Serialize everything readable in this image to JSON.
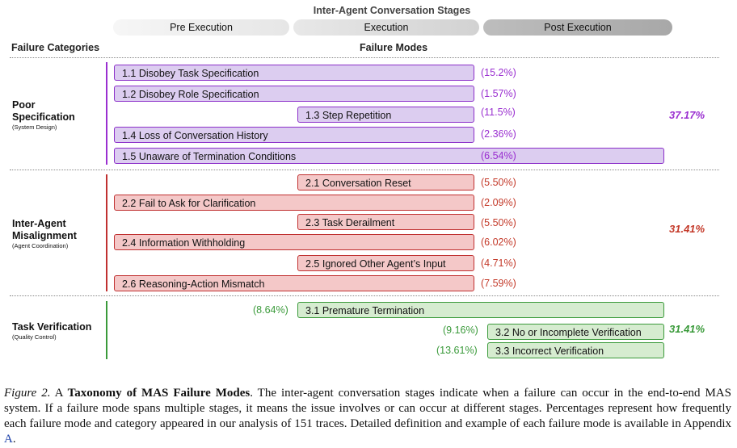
{
  "stages": {
    "title": "Inter-Agent Conversation Stages",
    "pre": "Pre Execution",
    "execution": "Execution",
    "post": "Post Execution"
  },
  "headers": {
    "categories": "Failure Categories",
    "modes": "Failure Modes"
  },
  "categories": [
    {
      "name_line1": "Poor",
      "name_line2": "Specification",
      "sub": "(System Design)",
      "total": "37.17%",
      "color": "#9a2fd0",
      "modes": [
        {
          "label": "1.1 Disobey Task Specification",
          "pct": "(15.2%)"
        },
        {
          "label": "1.2 Disobey Role Specification",
          "pct": "(1.57%)"
        },
        {
          "label": "1.3 Step Repetition",
          "pct": "(11.5%)"
        },
        {
          "label": "1.4 Loss of Conversation History",
          "pct": "(2.36%)"
        },
        {
          "label": "1.5 Unaware of Termination Conditions",
          "pct": "(6.54%)"
        }
      ]
    },
    {
      "name_line1": "Inter-Agent",
      "name_line2": "Misalignment",
      "sub": "(Agent Coordination)",
      "total": "31.41%",
      "color": "#c43a2a",
      "modes": [
        {
          "label": "2.1 Conversation Reset",
          "pct": "(5.50%)"
        },
        {
          "label": "2.2 Fail to Ask for Clarification",
          "pct": "(2.09%)"
        },
        {
          "label": "2.3 Task Derailment",
          "pct": "(5.50%)"
        },
        {
          "label": "2.4 Information Withholding",
          "pct": "(6.02%)"
        },
        {
          "label": "2.5 Ignored Other Agent’s Input",
          "pct": "(4.71%)"
        },
        {
          "label": "2.6 Reasoning-Action Mismatch",
          "pct": "(7.59%)"
        }
      ]
    },
    {
      "name_line1": "Task Verification",
      "name_line2": "",
      "sub": "(Quality Control)",
      "total": "31.41%",
      "color": "#3a9a3a",
      "modes": [
        {
          "label": "3.1  Premature Termination",
          "pct": "(8.64%)"
        },
        {
          "label": "3.2 No or Incomplete Verification",
          "pct": "(9.16%)"
        },
        {
          "label": "3.3 Incorrect Verification",
          "pct": "(13.61%)"
        }
      ]
    }
  ],
  "caption": {
    "fig": "Figure 2.",
    "a": " A ",
    "bold": "Taxonomy of MAS Failure Modes",
    "rest": ". The inter-agent conversation stages indicate when a failure can occur in the end-to-end MAS system. If a failure mode spans multiple stages, it means the issue involves or can occur at different stages. Percentages represent how frequently each failure mode and category appeared in our analysis of 151 traces. Detailed definition and example of each failure mode is available in Appendix ",
    "appendix": "A",
    "end": "."
  }
}
